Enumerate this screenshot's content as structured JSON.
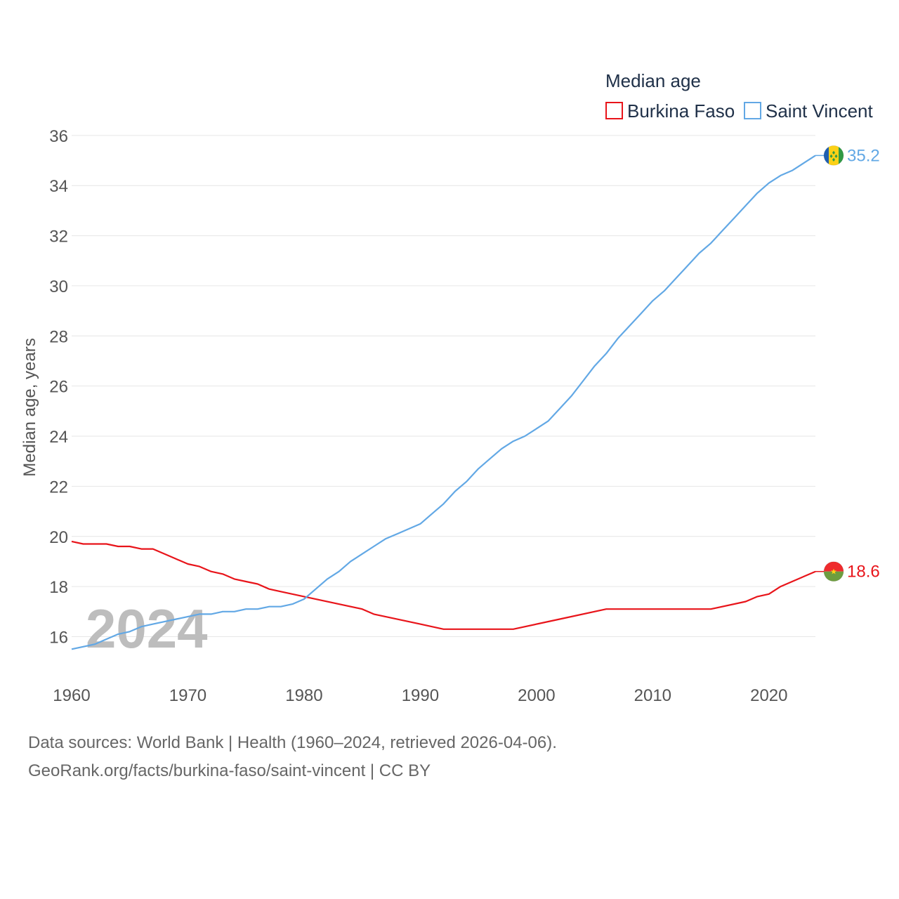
{
  "chart_data": {
    "type": "line",
    "legend_title": "Median age",
    "ylabel": "Median age, years",
    "xlabel": "",
    "xlim": [
      1960,
      2024
    ],
    "ylim": [
      14.5,
      36.5
    ],
    "y_ticks": [
      16,
      18,
      20,
      22,
      24,
      26,
      28,
      30,
      32,
      34,
      36
    ],
    "x_ticks": [
      1960,
      1970,
      1980,
      1990,
      2000,
      2010,
      2020
    ],
    "grid": true,
    "legend_position": "top-right",
    "year_label": "2024",
    "series": [
      {
        "name": "Burkina Faso",
        "color": "#e8141a",
        "end_label": "18.6",
        "flag": "burkina-faso-flag-icon",
        "points": [
          [
            1960,
            19.8
          ],
          [
            1961,
            19.7
          ],
          [
            1963,
            19.7
          ],
          [
            1964,
            19.6
          ],
          [
            1965,
            19.6
          ],
          [
            1966,
            19.5
          ],
          [
            1967,
            19.5
          ],
          [
            1968,
            19.3
          ],
          [
            1969,
            19.1
          ],
          [
            1970,
            18.9
          ],
          [
            1971,
            18.8
          ],
          [
            1972,
            18.6
          ],
          [
            1973,
            18.5
          ],
          [
            1974,
            18.3
          ],
          [
            1975,
            18.2
          ],
          [
            1976,
            18.1
          ],
          [
            1977,
            17.9
          ],
          [
            1978,
            17.8
          ],
          [
            1980,
            17.6
          ],
          [
            1985,
            17.1
          ],
          [
            1986,
            16.9
          ],
          [
            1990,
            16.5
          ],
          [
            1992,
            16.3
          ],
          [
            1998,
            16.3
          ],
          [
            2002,
            16.7
          ],
          [
            2006,
            17.1
          ],
          [
            2015,
            17.1
          ],
          [
            2018,
            17.4
          ],
          [
            2019,
            17.6
          ],
          [
            2020,
            17.7
          ],
          [
            2021,
            18.0
          ],
          [
            2022,
            18.2
          ],
          [
            2024,
            18.6
          ]
        ]
      },
      {
        "name": "Saint Vincent",
        "color": "#62a8e5",
        "end_label": "35.2",
        "flag": "saint-vincent-flag-icon",
        "points": [
          [
            1960,
            15.5
          ],
          [
            1962,
            15.7
          ],
          [
            1963,
            15.9
          ],
          [
            1964,
            16.1
          ],
          [
            1965,
            16.2
          ],
          [
            1966,
            16.4
          ],
          [
            1967,
            16.5
          ],
          [
            1969,
            16.7
          ],
          [
            1971,
            16.9
          ],
          [
            1972,
            16.9
          ],
          [
            1973,
            17.0
          ],
          [
            1974,
            17.0
          ],
          [
            1975,
            17.1
          ],
          [
            1976,
            17.1
          ],
          [
            1977,
            17.2
          ],
          [
            1978,
            17.2
          ],
          [
            1979,
            17.3
          ],
          [
            1980,
            17.5
          ],
          [
            1981,
            17.9
          ],
          [
            1982,
            18.3
          ],
          [
            1983,
            18.6
          ],
          [
            1984,
            19.0
          ],
          [
            1985,
            19.3
          ],
          [
            1986,
            19.6
          ],
          [
            1987,
            19.9
          ],
          [
            1988,
            20.1
          ],
          [
            1990,
            20.5
          ],
          [
            1991,
            20.9
          ],
          [
            1992,
            21.3
          ],
          [
            1993,
            21.8
          ],
          [
            1994,
            22.2
          ],
          [
            1995,
            22.7
          ],
          [
            1996,
            23.1
          ],
          [
            1997,
            23.5
          ],
          [
            1998,
            23.8
          ],
          [
            1999,
            24.0
          ],
          [
            2000,
            24.3
          ],
          [
            2001,
            24.6
          ],
          [
            2002,
            25.1
          ],
          [
            2003,
            25.6
          ],
          [
            2004,
            26.2
          ],
          [
            2005,
            26.8
          ],
          [
            2006,
            27.3
          ],
          [
            2007,
            27.9
          ],
          [
            2008,
            28.4
          ],
          [
            2009,
            28.9
          ],
          [
            2010,
            29.4
          ],
          [
            2011,
            29.8
          ],
          [
            2012,
            30.3
          ],
          [
            2013,
            30.8
          ],
          [
            2014,
            31.3
          ],
          [
            2015,
            31.7
          ],
          [
            2016,
            32.2
          ],
          [
            2017,
            32.7
          ],
          [
            2018,
            33.2
          ],
          [
            2019,
            33.7
          ],
          [
            2020,
            34.1
          ],
          [
            2021,
            34.4
          ],
          [
            2022,
            34.6
          ],
          [
            2023,
            34.9
          ],
          [
            2024,
            35.2
          ]
        ]
      }
    ]
  },
  "footer": {
    "source_line": "Data sources: World Bank | Health (1960–2024, retrieved 2026-04-06).",
    "credit_line": "GeoRank.org/facts/burkina-faso/saint-vincent | CC BY"
  }
}
